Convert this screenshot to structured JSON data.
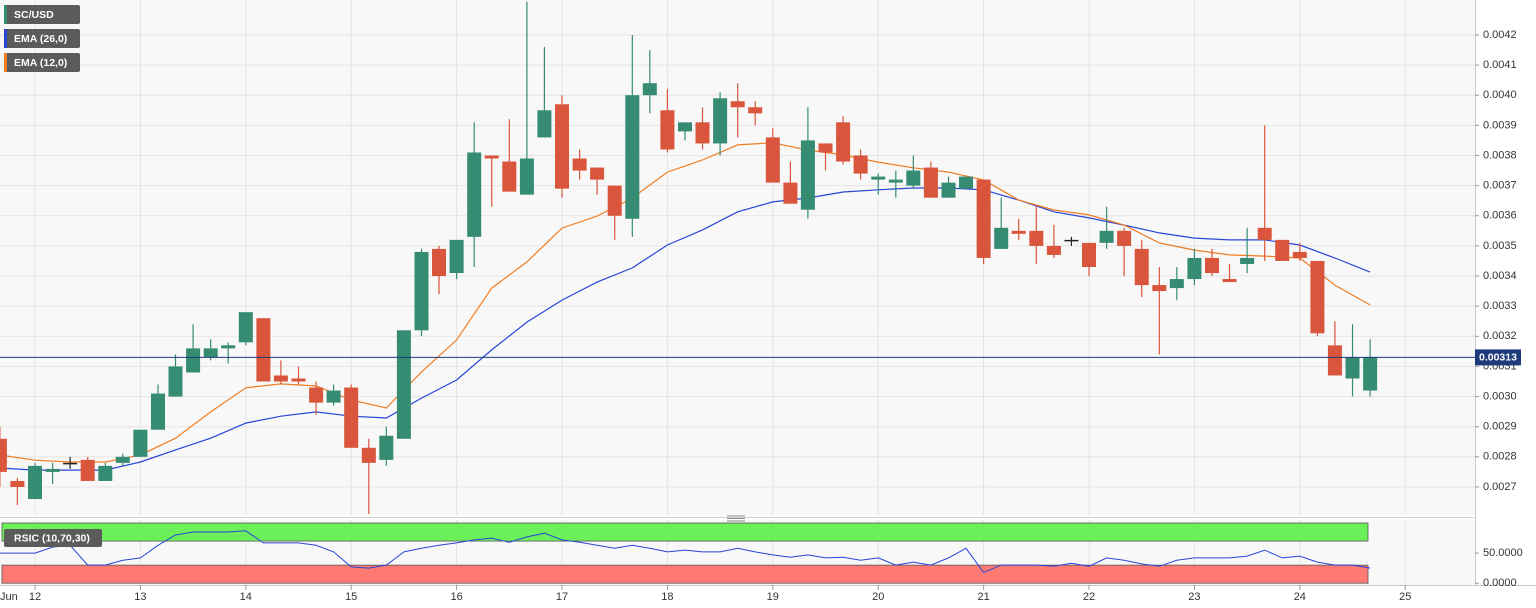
{
  "chart_data": [
    {
      "type": "candlestick",
      "name": "SC/USD",
      "x": [
        11.667,
        11.833,
        12,
        12.167,
        12.333,
        12.5,
        12.667,
        12.833,
        13,
        13.167,
        13.333,
        13.5,
        13.667,
        13.833,
        14,
        14.167,
        14.333,
        14.5,
        14.667,
        14.833,
        15,
        15.167,
        15.333,
        15.5,
        15.667,
        15.833,
        16,
        16.167,
        16.333,
        16.5,
        16.667,
        16.833,
        17,
        17.167,
        17.333,
        17.5,
        17.667,
        17.833,
        18,
        18.167,
        18.333,
        18.5,
        18.667,
        18.833,
        19,
        19.167,
        19.333,
        19.5,
        19.667,
        19.833,
        20,
        20.167,
        20.333,
        20.5,
        20.667,
        20.833,
        21,
        21.167,
        21.333,
        21.5,
        21.667,
        21.833,
        22,
        22.167,
        22.333,
        22.5,
        22.667,
        22.833,
        23,
        23.167,
        23.333,
        23.5,
        23.667,
        23.833,
        24,
        24.167,
        24.333,
        24.5,
        24.667
      ],
      "open": [
        0.00286,
        0.00272,
        0.00266,
        0.00275,
        0.00278,
        0.00279,
        0.00272,
        0.00278,
        0.0028,
        0.00289,
        0.003,
        0.00308,
        0.00313,
        0.00316,
        0.00318,
        0.00326,
        0.00307,
        0.00306,
        0.00303,
        0.00298,
        0.00303,
        0.00283,
        0.00279,
        0.00286,
        0.00322,
        0.00349,
        0.00341,
        0.00353,
        0.0038,
        0.00378,
        0.00367,
        0.00386,
        0.00397,
        0.00379,
        0.00376,
        0.0037,
        0.00359,
        0.004,
        0.00395,
        0.00388,
        0.00391,
        0.00384,
        0.00398,
        0.00396,
        0.00386,
        0.00371,
        0.00362,
        0.00384,
        0.00391,
        0.0038,
        0.00372,
        0.00371,
        0.0037,
        0.00376,
        0.00366,
        0.00369,
        0.00372,
        0.00349,
        0.00355,
        0.00355,
        0.0035,
        0.00352,
        0.00351,
        0.00351,
        0.00355,
        0.00349,
        0.00337,
        0.00336,
        0.00339,
        0.00346,
        0.00339,
        0.00344,
        0.00356,
        0.00352,
        0.00348,
        0.00345,
        0.00317,
        0.00306,
        0.00302
      ],
      "high": [
        0.0029,
        0.00273,
        0.00278,
        0.00278,
        0.0028,
        0.0028,
        0.00278,
        0.00281,
        0.00289,
        0.00304,
        0.00314,
        0.00324,
        0.00319,
        0.00318,
        0.00328,
        0.00326,
        0.00312,
        0.0031,
        0.00305,
        0.00304,
        0.00304,
        0.00286,
        0.0029,
        0.00322,
        0.00349,
        0.0035,
        0.00352,
        0.00391,
        0.0038,
        0.00392,
        0.00431,
        0.00416,
        0.004,
        0.00382,
        0.00376,
        0.0037,
        0.0042,
        0.00415,
        0.00402,
        0.00391,
        0.00396,
        0.00401,
        0.00404,
        0.00398,
        0.00389,
        0.00378,
        0.00396,
        0.00384,
        0.00393,
        0.00382,
        0.00374,
        0.00375,
        0.0038,
        0.00378,
        0.00373,
        0.00373,
        0.00372,
        0.00366,
        0.00359,
        0.00363,
        0.00357,
        0.00353,
        0.00351,
        0.00363,
        0.00356,
        0.00352,
        0.00343,
        0.00343,
        0.00349,
        0.00349,
        0.00344,
        0.00356,
        0.0039,
        0.00352,
        0.00351,
        0.00345,
        0.00325,
        0.00324,
        0.00319
      ],
      "low": [
        0.0027,
        0.00264,
        0.00266,
        0.00271,
        0.00276,
        0.00272,
        0.00272,
        0.00277,
        0.0028,
        0.00289,
        0.003,
        0.00308,
        0.00312,
        0.00311,
        0.00317,
        0.00305,
        0.00304,
        0.00304,
        0.00294,
        0.00297,
        0.00283,
        0.00261,
        0.00277,
        0.00286,
        0.0032,
        0.00334,
        0.00339,
        0.00343,
        0.00363,
        0.00368,
        0.00367,
        0.00386,
        0.00366,
        0.00372,
        0.00367,
        0.00352,
        0.00353,
        0.00394,
        0.00381,
        0.00385,
        0.00382,
        0.0038,
        0.00386,
        0.0039,
        0.00371,
        0.00364,
        0.00359,
        0.00375,
        0.00377,
        0.00372,
        0.00367,
        0.00366,
        0.00369,
        0.00366,
        0.00366,
        0.00369,
        0.00344,
        0.00349,
        0.00352,
        0.00344,
        0.00346,
        0.0035,
        0.0034,
        0.00349,
        0.0034,
        0.00333,
        0.00314,
        0.00332,
        0.00337,
        0.0034,
        0.00338,
        0.00341,
        0.00345,
        0.00345,
        0.00345,
        0.0032,
        0.00307,
        0.003,
        0.003
      ],
      "close": [
        0.00275,
        0.0027,
        0.00277,
        0.00276,
        0.00278,
        0.00272,
        0.00277,
        0.0028,
        0.00289,
        0.00301,
        0.0031,
        0.00316,
        0.00316,
        0.00317,
        0.00328,
        0.00305,
        0.00305,
        0.00305,
        0.00298,
        0.00302,
        0.00283,
        0.00278,
        0.00287,
        0.00322,
        0.00348,
        0.0034,
        0.00352,
        0.00381,
        0.00379,
        0.00368,
        0.00379,
        0.00395,
        0.00369,
        0.00375,
        0.00372,
        0.0036,
        0.004,
        0.00404,
        0.00382,
        0.00391,
        0.00384,
        0.00399,
        0.00396,
        0.00394,
        0.00371,
        0.00364,
        0.00385,
        0.00381,
        0.00378,
        0.00374,
        0.00373,
        0.00372,
        0.00375,
        0.00366,
        0.00371,
        0.00373,
        0.00346,
        0.00356,
        0.00354,
        0.0035,
        0.00347,
        0.00352,
        0.00343,
        0.00355,
        0.0035,
        0.00337,
        0.00335,
        0.00339,
        0.00346,
        0.00341,
        0.00338,
        0.00346,
        0.00352,
        0.00345,
        0.00346,
        0.00321,
        0.00307,
        0.00313,
        0.00313
      ],
      "up_color": "#358c73",
      "down_color": "#d9553c",
      "doji_color": "#222222",
      "overlays": [
        {
          "name": "EMA (26,0)",
          "color": "#2846d6",
          "x": [
            11.667,
            12,
            12.333,
            12.667,
            13,
            13.333,
            13.667,
            14,
            14.333,
            14.667,
            15,
            15.333,
            15.667,
            16,
            16.333,
            16.667,
            17,
            17.333,
            17.667,
            18,
            18.333,
            18.667,
            19,
            19.333,
            19.667,
            20,
            20.333,
            20.667,
            21,
            21.333,
            21.667,
            22,
            22.333,
            22.667,
            23,
            23.333,
            23.667,
            24,
            24.333,
            24.667
          ],
          "values": [
            0.002763,
            0.002756,
            0.002756,
            0.002756,
            0.002783,
            0.002823,
            0.002862,
            0.002912,
            0.002935,
            0.002949,
            0.002935,
            0.002929,
            0.002995,
            0.003055,
            0.003155,
            0.003247,
            0.00332,
            0.00338,
            0.003427,
            0.003503,
            0.003553,
            0.003613,
            0.003646,
            0.003659,
            0.003679,
            0.003686,
            0.003692,
            0.003692,
            0.003686,
            0.003652,
            0.003613,
            0.003593,
            0.003569,
            0.003543,
            0.003526,
            0.00352,
            0.00352,
            0.003503,
            0.00346,
            0.003413
          ]
        },
        {
          "name": "EMA (12,0)",
          "color": "#f07d22",
          "x": [
            11.667,
            12,
            12.333,
            12.667,
            13,
            13.333,
            13.667,
            14,
            14.333,
            14.667,
            15,
            15.333,
            15.667,
            16,
            16.333,
            16.667,
            17,
            17.333,
            17.667,
            18,
            18.333,
            18.667,
            19,
            19.333,
            19.667,
            20,
            20.333,
            20.667,
            21,
            21.333,
            21.667,
            22,
            22.333,
            22.667,
            23,
            23.333,
            23.667,
            24,
            24.333,
            24.667
          ],
          "values": [
            0.002806,
            0.002789,
            0.002783,
            0.002783,
            0.002806,
            0.002862,
            0.002949,
            0.003029,
            0.003042,
            0.003035,
            0.002989,
            0.002962,
            0.003082,
            0.003188,
            0.00336,
            0.003447,
            0.003559,
            0.003599,
            0.003659,
            0.003745,
            0.003785,
            0.003835,
            0.003842,
            0.003818,
            0.003802,
            0.003778,
            0.003759,
            0.003745,
            0.003719,
            0.003652,
            0.003619,
            0.003603,
            0.003569,
            0.00351,
            0.003486,
            0.00347,
            0.003466,
            0.00346,
            0.00337,
            0.003304
          ]
        }
      ],
      "last_price": 0.00313,
      "last_price_color": "#1d3a7a",
      "ylim": [
        0.002607,
        0.004316
      ],
      "yticks": [
        0.0027,
        0.0028,
        0.0029,
        {
          "value": 0.003,
          "label": "0.0030"
        },
        0.0031,
        0.0032,
        0.0033,
        0.0034,
        0.0035,
        0.0036,
        0.0037,
        0.0038,
        0.0039,
        {
          "value": 0.004,
          "label": "0.0040"
        },
        0.0041,
        0.0042
      ],
      "xlim": [
        11.668,
        25.662
      ],
      "xticks": [
        12,
        13,
        14,
        15,
        16,
        17,
        18,
        19,
        20,
        21,
        22,
        23,
        24,
        25
      ],
      "month_label": "Jun",
      "grid": true
    },
    {
      "type": "rsi",
      "name": "RSIC (10,70,30)",
      "color": "#2846d6",
      "values": [
        50,
        50,
        50,
        60,
        63,
        30,
        30,
        38,
        42,
        63,
        80,
        85,
        85,
        85,
        87,
        67,
        67,
        67,
        63,
        52,
        27,
        25,
        30,
        52,
        58,
        63,
        67,
        72,
        75,
        68,
        77,
        83,
        72,
        68,
        63,
        58,
        63,
        58,
        52,
        55,
        52,
        52,
        58,
        52,
        47,
        43,
        47,
        42,
        43,
        38,
        42,
        30,
        35,
        30,
        42,
        58,
        18,
        30,
        30,
        30,
        28,
        33,
        28,
        42,
        38,
        32,
        28,
        38,
        42,
        42,
        42,
        45,
        55,
        42,
        45,
        35,
        30,
        30,
        25
      ],
      "bands": [
        {
          "from": 70,
          "to": 100,
          "color": "#6cf05a"
        },
        {
          "from": 0,
          "to": 30,
          "color": "#ff7a72"
        }
      ],
      "ylim": [
        -3,
        105
      ],
      "yticks": [
        {
          "value": 0,
          "label": "0.0000"
        },
        {
          "value": 50,
          "label": "50.0000"
        }
      ]
    }
  ]
}
